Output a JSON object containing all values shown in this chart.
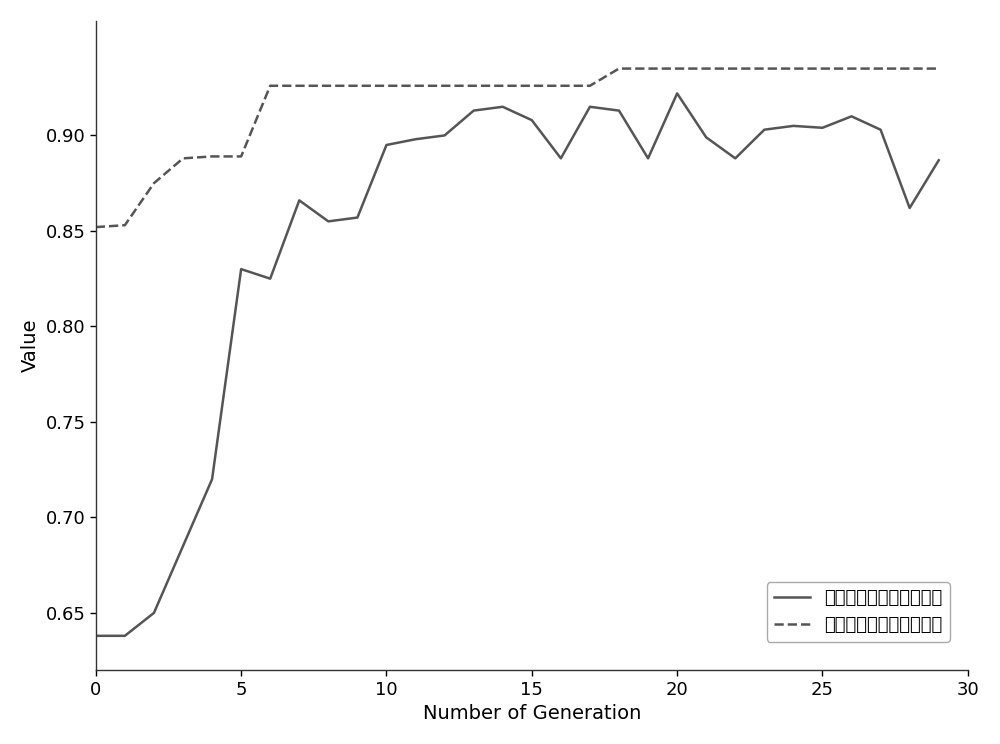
{
  "mean_x": [
    0,
    1,
    2,
    3,
    4,
    5,
    6,
    7,
    8,
    9,
    10,
    11,
    12,
    13,
    14,
    15,
    16,
    17,
    18,
    19,
    20,
    21,
    22,
    23,
    24,
    25,
    26,
    27,
    28,
    29
  ],
  "mean_y": [
    0.638,
    0.638,
    0.65,
    0.685,
    0.72,
    0.83,
    0.825,
    0.866,
    0.855,
    0.857,
    0.895,
    0.898,
    0.9,
    0.913,
    0.915,
    0.908,
    0.888,
    0.915,
    0.913,
    0.888,
    0.922,
    0.899,
    0.888,
    0.903,
    0.905,
    0.904,
    0.91,
    0.903,
    0.862,
    0.887
  ],
  "best_x": [
    0,
    1,
    2,
    3,
    4,
    5,
    6,
    7,
    8,
    9,
    10,
    11,
    12,
    13,
    14,
    15,
    16,
    17,
    18,
    19,
    20,
    21,
    22,
    23,
    24,
    25,
    26,
    27,
    28,
    29
  ],
  "best_y": [
    0.852,
    0.853,
    0.875,
    0.888,
    0.889,
    0.889,
    0.926,
    0.926,
    0.926,
    0.926,
    0.926,
    0.926,
    0.926,
    0.926,
    0.926,
    0.926,
    0.926,
    0.926,
    0.935,
    0.935,
    0.935,
    0.935,
    0.935,
    0.935,
    0.935,
    0.935,
    0.935,
    0.935,
    0.935,
    0.935
  ],
  "line_color": "#555555",
  "xlabel": "Number of Generation",
  "ylabel": "Value",
  "xlim": [
    0,
    30
  ],
  "ylim": [
    0.62,
    0.96
  ],
  "yticks": [
    0.65,
    0.7,
    0.75,
    0.8,
    0.85,
    0.9
  ],
  "xticks": [
    0,
    5,
    10,
    15,
    20,
    25,
    30
  ],
  "legend_label_mean": "种群个体平均目标函数値",
  "legend_label_best": "种群最优个体目标函数値",
  "background_color": "#ffffff",
  "font_size": 14,
  "tick_font_size": 13,
  "legend_font_size": 13
}
